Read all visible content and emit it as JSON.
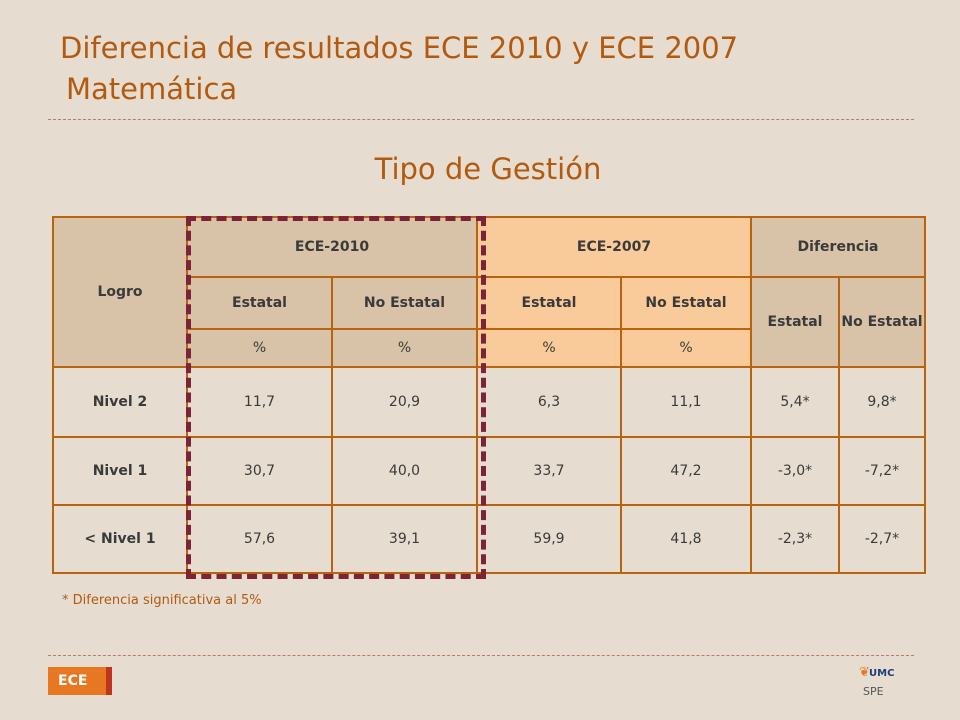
{
  "title": {
    "line1": "Diferencia de resultados ECE 2010 y ECE 2007",
    "line2": "Matemática"
  },
  "subtitle": "Tipo de Gestión",
  "table": {
    "logro_header": "Logro",
    "group_headers": [
      "ECE-2010",
      "ECE-2007",
      "Diferencia"
    ],
    "sub_headers": [
      "Estatal",
      "No Estatal",
      "Estatal",
      "No Estatal",
      "Estatal",
      "No Estatal"
    ],
    "units": [
      "%",
      "%",
      "%",
      "%"
    ],
    "rows": [
      {
        "label": "Nivel 2",
        "values": [
          "11,7",
          "20,9",
          "6,3",
          "11,1",
          "5,4*",
          "9,8*"
        ]
      },
      {
        "label": "Nivel 1",
        "values": [
          "30,7",
          "40,0",
          "33,7",
          "47,2",
          "-3,0*",
          "-7,2*"
        ]
      },
      {
        "label": "< Nivel 1",
        "values": [
          "57,6",
          "39,1",
          "59,9",
          "41,8",
          "-2,3*",
          "-2,7*"
        ]
      }
    ]
  },
  "note": "* Diferencia significativa al 5%",
  "footer": {
    "badge": "ECE",
    "logo_text": "UMC",
    "logo_sub": "SPE"
  },
  "colors": {
    "title": "#b25a0f",
    "border": "#b8640e",
    "header_tan": "#d8c2a8",
    "header_peach": "#f9cb9a",
    "highlight": "#7c2337",
    "background": "#e6ddd0"
  },
  "icons": [
    "umc-logo-icon"
  ]
}
